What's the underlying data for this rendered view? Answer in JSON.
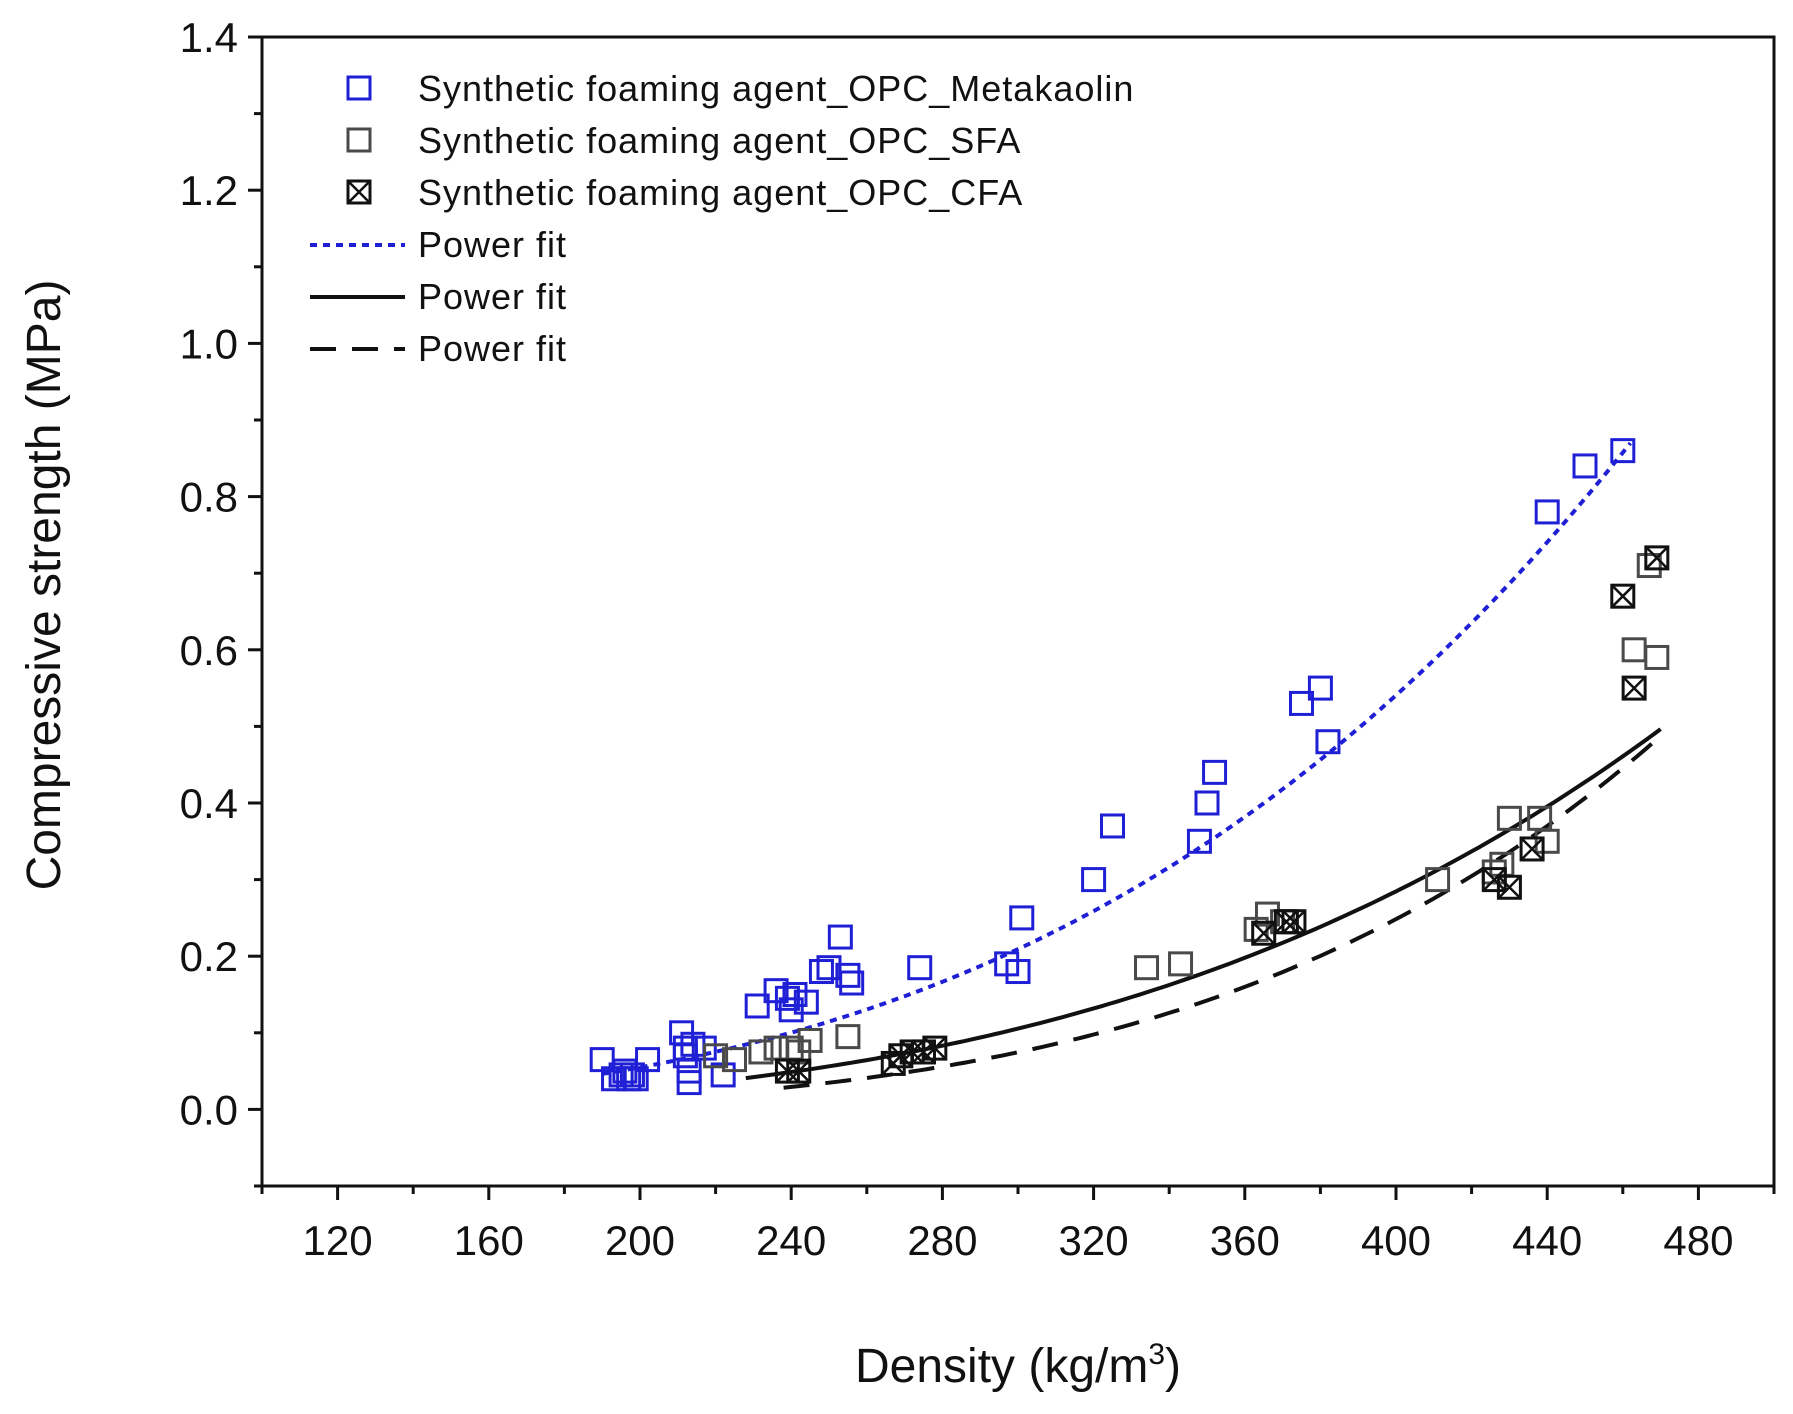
{
  "chart_data": {
    "type": "scatter",
    "xlabel": "Density (kg/m3)",
    "xlabel_main": "Density (kg/m",
    "xlabel_sup": "3",
    "xlabel_close": ")",
    "ylabel": "Compressive strength (MPa)",
    "xlim": [
      100,
      500
    ],
    "ylim": [
      -0.1,
      1.4
    ],
    "xticks": [
      120,
      160,
      200,
      240,
      280,
      320,
      360,
      400,
      440,
      480
    ],
    "xtick_labels": [
      "120",
      "160",
      "200",
      "240",
      "280",
      "320",
      "360",
      "400",
      "440",
      "480"
    ],
    "yticks": [
      0.0,
      0.2,
      0.4,
      0.6,
      0.8,
      1.0,
      1.2,
      1.4
    ],
    "ytick_labels": [
      "0.0",
      "0.2",
      "0.4",
      "0.6",
      "0.8",
      "1.0",
      "1.2",
      "1.4"
    ],
    "legend_position": "top-left",
    "grid": false,
    "series": [
      {
        "name": "Synthetic foaming agent_OPC_Metakaolin",
        "marker": "open-square",
        "color": "#1f1fd6",
        "points": [
          [
            190,
            0.065
          ],
          [
            193,
            0.04
          ],
          [
            195,
            0.045
          ],
          [
            196,
            0.05
          ],
          [
            197,
            0.04
          ],
          [
            198,
            0.045
          ],
          [
            199,
            0.04
          ],
          [
            202,
            0.065
          ],
          [
            211,
            0.1
          ],
          [
            212,
            0.08
          ],
          [
            213,
            0.035
          ],
          [
            213,
            0.05
          ],
          [
            212,
            0.07
          ],
          [
            214,
            0.085
          ],
          [
            217,
            0.08
          ],
          [
            222,
            0.045
          ],
          [
            231,
            0.135
          ],
          [
            236,
            0.155
          ],
          [
            239,
            0.145
          ],
          [
            240,
            0.13
          ],
          [
            241,
            0.15
          ],
          [
            244,
            0.14
          ],
          [
            248,
            0.18
          ],
          [
            250,
            0.185
          ],
          [
            253,
            0.225
          ],
          [
            255,
            0.175
          ],
          [
            256,
            0.165
          ],
          [
            274,
            0.185
          ],
          [
            297,
            0.19
          ],
          [
            300,
            0.18
          ],
          [
            301,
            0.25
          ],
          [
            320,
            0.3
          ],
          [
            325,
            0.37
          ],
          [
            348,
            0.35
          ],
          [
            350,
            0.4
          ],
          [
            352,
            0.44
          ],
          [
            375,
            0.53
          ],
          [
            380,
            0.55
          ],
          [
            382,
            0.48
          ],
          [
            440,
            0.78
          ],
          [
            450,
            0.84
          ],
          [
            460,
            0.86
          ]
        ]
      },
      {
        "name": "Synthetic foaming agent_OPC_SFA",
        "marker": "open-square",
        "color": "#4a4a4a",
        "points": [
          [
            220,
            0.07
          ],
          [
            225,
            0.065
          ],
          [
            232,
            0.075
          ],
          [
            236,
            0.08
          ],
          [
            240,
            0.08
          ],
          [
            242,
            0.075
          ],
          [
            245,
            0.09
          ],
          [
            255,
            0.095
          ],
          [
            334,
            0.185
          ],
          [
            343,
            0.19
          ],
          [
            363,
            0.235
          ],
          [
            366,
            0.255
          ],
          [
            370,
            0.245
          ],
          [
            411,
            0.3
          ],
          [
            426,
            0.31
          ],
          [
            428,
            0.32
          ],
          [
            430,
            0.38
          ],
          [
            438,
            0.38
          ],
          [
            440,
            0.35
          ],
          [
            463,
            0.6
          ],
          [
            467,
            0.71
          ],
          [
            469,
            0.59
          ]
        ]
      },
      {
        "name": "Synthetic foaming agent_OPC_CFA",
        "marker": "crossed-square",
        "color": "#111111",
        "points": [
          [
            239,
            0.05
          ],
          [
            242,
            0.05
          ],
          [
            267,
            0.06
          ],
          [
            269,
            0.07
          ],
          [
            272,
            0.075
          ],
          [
            275,
            0.075
          ],
          [
            278,
            0.08
          ],
          [
            365,
            0.23
          ],
          [
            371,
            0.245
          ],
          [
            373,
            0.245
          ],
          [
            426,
            0.3
          ],
          [
            430,
            0.29
          ],
          [
            436,
            0.34
          ],
          [
            460,
            0.67
          ],
          [
            463,
            0.55
          ],
          [
            469,
            0.72
          ]
        ]
      }
    ],
    "fits": [
      {
        "name": "Power fit",
        "style": "dotted",
        "color": "#1f1fd6",
        "series": "Synthetic foaming agent_OPC_Metakaolin",
        "x_range": [
          190,
          462
        ],
        "a": 1.4e-09,
        "b": 3.3
      },
      {
        "name": "Power fit",
        "style": "solid",
        "color": "#111111",
        "series": "Synthetic foaming agent_OPC_SFA",
        "x_range": [
          228,
          470
        ],
        "a": 3e-10,
        "b": 3.45
      },
      {
        "name": "Power fit",
        "style": "dashed",
        "color": "#111111",
        "series": "Synthetic foaming agent_OPC_CFA",
        "x_range": [
          238,
          470
        ],
        "a": 3.3e-12,
        "b": 4.18
      }
    ]
  }
}
